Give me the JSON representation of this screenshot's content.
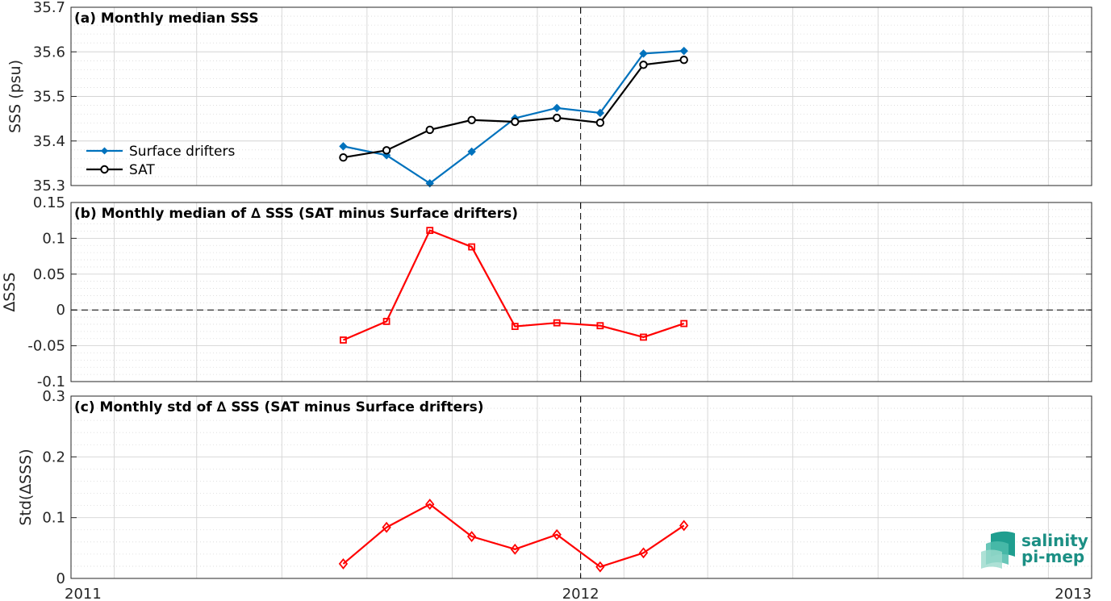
{
  "chart_data": [
    {
      "type": "line",
      "title": "(a) Monthly median SSS",
      "ylabel": "SSS (psu)",
      "ylim": [
        35.3,
        35.7
      ],
      "yticks": [
        "35.3",
        "35.4",
        "35.5",
        "35.6",
        "35.7"
      ],
      "grid": true,
      "legend": "left",
      "series": [
        {
          "name": "Surface drifters",
          "color": "#0072bd",
          "marker": "filled-diamond",
          "x": [
            "2011-07-15",
            "2011-08-15",
            "2011-09-15",
            "2011-10-15",
            "2011-11-15",
            "2011-12-15",
            "2012-01-15",
            "2012-02-15",
            "2012-03-15"
          ],
          "values": [
            35.388,
            35.368,
            35.305,
            35.376,
            35.451,
            35.474,
            35.463,
            35.596,
            35.602
          ]
        },
        {
          "name": "SAT",
          "color": "#000000",
          "marker": "open-circle",
          "x": [
            "2011-07-15",
            "2011-08-15",
            "2011-09-15",
            "2011-10-15",
            "2011-11-15",
            "2011-12-15",
            "2012-01-15",
            "2012-02-15",
            "2012-03-15"
          ],
          "values": [
            35.363,
            35.379,
            35.425,
            35.447,
            35.443,
            35.452,
            35.441,
            35.571,
            35.582
          ]
        }
      ]
    },
    {
      "type": "line",
      "title": "(b) Monthly median of ∆ SSS (SAT minus Surface drifters)",
      "ylabel": "∆SSS",
      "ylim": [
        -0.1,
        0.15
      ],
      "yticks": [
        "-0.1",
        "-0.05",
        "0",
        "0.05",
        "0.1",
        "0.15"
      ],
      "grid": true,
      "zero_line": true,
      "series": [
        {
          "color": "#ff0000",
          "marker": "open-square",
          "x": [
            "2011-07-15",
            "2011-08-15",
            "2011-09-15",
            "2011-10-15",
            "2011-11-15",
            "2011-12-15",
            "2012-01-15",
            "2012-02-15",
            "2012-03-15"
          ],
          "values": [
            -0.042,
            -0.016,
            0.111,
            0.088,
            -0.023,
            -0.018,
            -0.022,
            -0.038,
            -0.019
          ]
        }
      ]
    },
    {
      "type": "line",
      "title": "(c) Monthly std of ∆ SSS (SAT minus Surface drifters)",
      "ylabel": "Std(∆SSS)",
      "ylim": [
        0,
        0.3
      ],
      "yticks": [
        "0",
        "0.1",
        "0.2",
        "0.3"
      ],
      "grid": true,
      "series": [
        {
          "color": "#ff0000",
          "marker": "open-diamond",
          "x": [
            "2011-07-15",
            "2011-08-15",
            "2011-09-15",
            "2011-10-15",
            "2011-11-15",
            "2011-12-15",
            "2012-01-15",
            "2012-02-15",
            "2012-03-15"
          ],
          "values": [
            0.024,
            0.084,
            0.122,
            0.069,
            0.048,
            0.072,
            0.019,
            0.042,
            0.087
          ]
        }
      ]
    }
  ],
  "xaxis": {
    "range": [
      "2011-01-01",
      "2013-01-01"
    ],
    "ticks": [
      {
        "date": "2011-01-01",
        "label": "2011"
      },
      {
        "date": "2012-01-01",
        "label": "2012"
      },
      {
        "date": "2013-01-01",
        "label": "2013"
      }
    ],
    "vline": "2012-01-01"
  },
  "logo": {
    "line1": "salinity",
    "line2": "pi-mep",
    "color": "#1b8f84"
  }
}
